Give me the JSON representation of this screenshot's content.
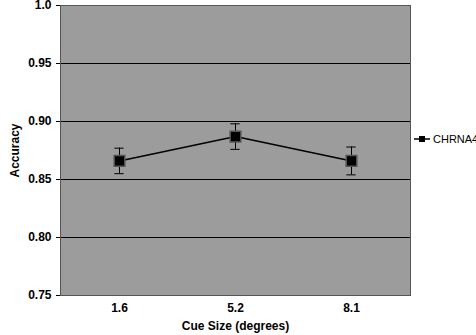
{
  "chart_data": {
    "type": "line",
    "x_label": "Cue Size (degrees)",
    "y_label": "Accuracy",
    "categories": [
      "1.6",
      "5.2",
      "8.1"
    ],
    "series": [
      {
        "name": "CHRNA4",
        "color": "#000000",
        "marker": "square",
        "values": [
          0.866,
          0.887,
          0.866
        ],
        "error": [
          0.011,
          0.011,
          0.012
        ]
      }
    ],
    "ylim": [
      0.75,
      1.0
    ],
    "yticks": [
      0.75,
      {
        "value": 0.8,
        "label": "0.80"
      },
      0.85,
      {
        "value": 0.9,
        "label": "0.90"
      },
      0.95,
      {
        "value": 1.0,
        "label": "1.0"
      }
    ],
    "grid": true,
    "legend": "right"
  }
}
